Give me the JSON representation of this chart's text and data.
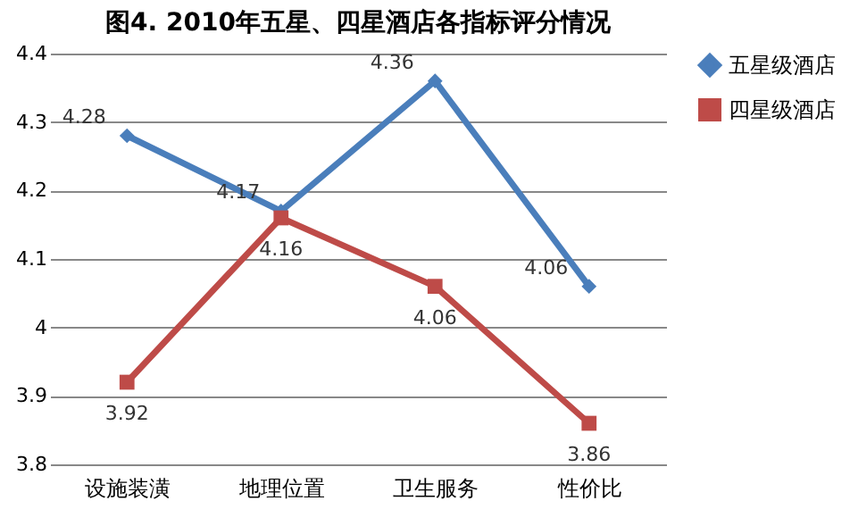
{
  "chart_data": {
    "type": "line",
    "title": "图4. 2010年五星、四星酒店各指标评分情况",
    "categories": [
      "设施装潢",
      "地理位置",
      "卫生服务",
      "性价比"
    ],
    "series": [
      {
        "name": "五星级酒店",
        "color": "#4a7ebb",
        "marker": "diamond",
        "values": [
          4.28,
          4.17,
          4.36,
          4.06
        ]
      },
      {
        "name": "四星级酒店",
        "color": "#be4b48",
        "marker": "square",
        "values": [
          3.92,
          4.16,
          4.06,
          3.86
        ]
      }
    ],
    "ylim": [
      3.8,
      4.4
    ],
    "yticks": [
      3.8,
      3.9,
      4,
      4.1,
      4.2,
      4.3,
      4.4
    ],
    "grid": "y",
    "legend": "right",
    "data_labels": true,
    "line_style": "solid"
  }
}
